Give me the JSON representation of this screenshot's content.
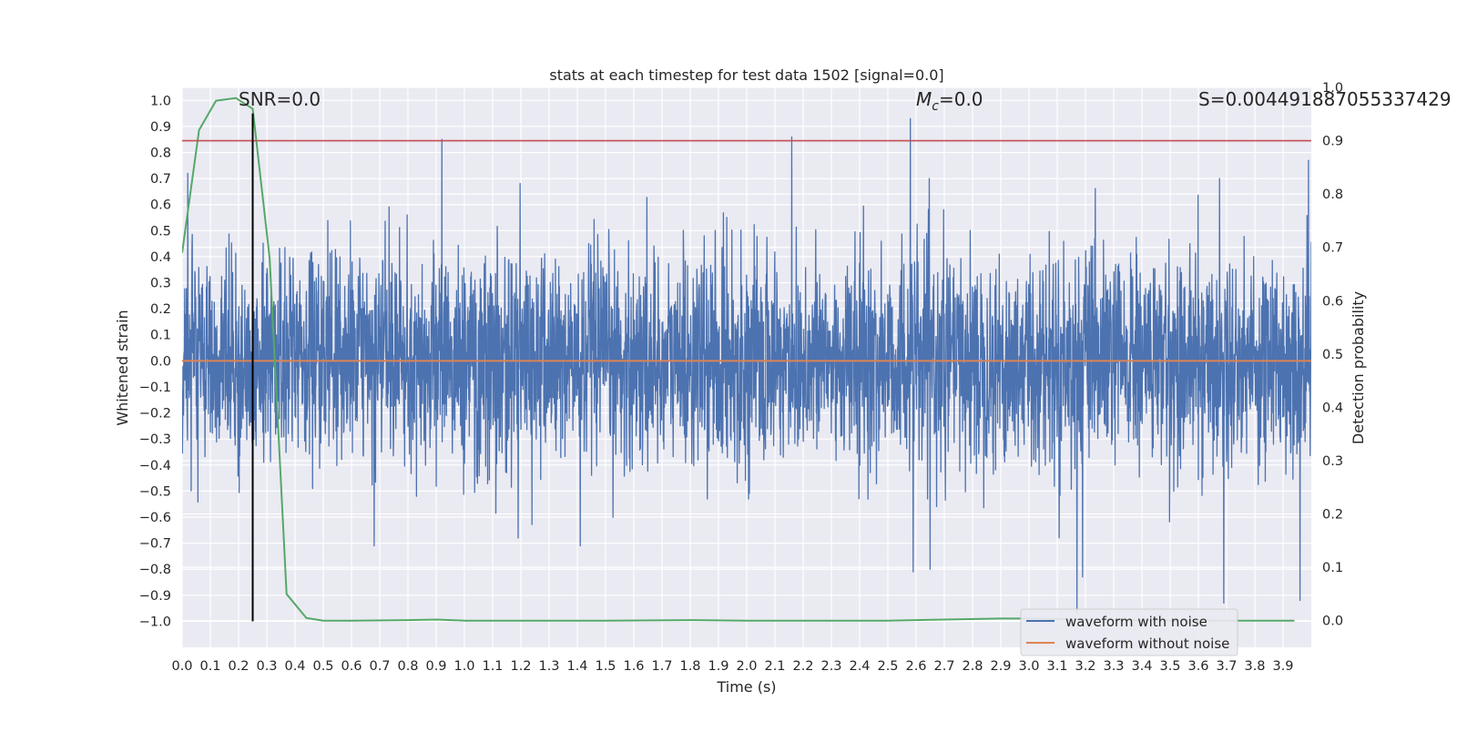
{
  "chart_data": {
    "type": "line",
    "title": "stats at each timestep for test data 1502 [signal=0.0]",
    "xlabel": "Time (s)",
    "ylabel": "Whitened strain",
    "y2label": "Detection probability",
    "xlim": [
      0.0,
      4.0
    ],
    "ylim": [
      -1.1,
      1.05
    ],
    "y2lim": [
      -0.05,
      1.0
    ],
    "xticks": [
      0.0,
      0.1,
      0.2,
      0.3,
      0.4,
      0.5,
      0.6,
      0.7,
      0.8,
      0.9,
      1.0,
      1.1,
      1.2,
      1.3,
      1.4,
      1.5,
      1.6,
      1.7,
      1.8,
      1.9,
      2.0,
      2.1,
      2.2,
      2.3,
      2.4,
      2.5,
      2.6,
      2.7,
      2.8,
      2.9,
      3.0,
      3.1,
      3.2,
      3.3,
      3.4,
      3.5,
      3.6,
      3.7,
      3.8,
      3.9
    ],
    "xtick_labels": [
      "0.0",
      "0.1",
      "0.2",
      "0.3",
      "0.4",
      "0.5",
      "0.6",
      "0.7",
      "0.8",
      "0.9",
      "1.0",
      "1.1",
      "1.2",
      "1.3",
      "1.4",
      "1.5",
      "1.6",
      "1.7",
      "1.8",
      "1.9",
      "2.0",
      "2.1",
      "2.2",
      "2.3",
      "2.4",
      "2.5",
      "2.6",
      "2.7",
      "2.8",
      "2.9",
      "3.0",
      "3.1",
      "3.2",
      "3.3",
      "3.4",
      "3.5",
      "3.6",
      "3.7",
      "3.8",
      "3.9"
    ],
    "yticks": [
      1.0,
      0.9,
      0.8,
      0.7,
      0.6,
      0.5,
      0.4,
      0.3,
      0.2,
      0.1,
      0.0,
      -0.1,
      -0.2,
      -0.3,
      -0.4,
      -0.5,
      -0.6,
      -0.7,
      -0.8,
      -0.9,
      -1.0
    ],
    "ytick_labels": [
      "1.0",
      "0.9",
      "0.8",
      "0.7",
      "0.6",
      "0.5",
      "0.4",
      "0.3",
      "0.2",
      "0.1",
      "0.0",
      "−0.1",
      "−0.2",
      "−0.3",
      "−0.4",
      "−0.5",
      "−0.6",
      "−0.7",
      "−0.8",
      "−0.9",
      "−1.0"
    ],
    "y2ticks": [
      1.0,
      0.9,
      0.8,
      0.7,
      0.6,
      0.5,
      0.4,
      0.3,
      0.2,
      0.1,
      0.0
    ],
    "y2tick_labels": [
      "1.0",
      "0.9",
      "0.8",
      "0.7",
      "0.6",
      "0.5",
      "0.4",
      "0.3",
      "0.2",
      "0.1",
      "0.0"
    ],
    "series": [
      {
        "name": "waveform with noise",
        "axis": "left",
        "color": "#4c72b0",
        "generator": "noise",
        "n_points": 4000,
        "spikes": [
          {
            "t": 0.02,
            "v": 0.72
          },
          {
            "t": 0.92,
            "v": 0.85
          },
          {
            "t": 1.19,
            "v": -0.68
          },
          {
            "t": 2.16,
            "v": 0.86
          },
          {
            "t": 2.58,
            "v": 0.93
          },
          {
            "t": 2.59,
            "v": -0.81
          },
          {
            "t": 2.65,
            "v": -0.8
          },
          {
            "t": 3.17,
            "v": -0.97
          },
          {
            "t": 3.19,
            "v": -0.83
          },
          {
            "t": 3.69,
            "v": -0.93
          },
          {
            "t": 3.96,
            "v": -0.92
          },
          {
            "t": 3.99,
            "v": 0.77
          },
          {
            "t": 1.41,
            "v": -0.71
          },
          {
            "t": 0.68,
            "v": -0.71
          }
        ]
      },
      {
        "name": "waveform without noise",
        "axis": "left",
        "color": "#dd8452",
        "x": [
          0.0,
          4.0
        ],
        "y": [
          0.0,
          0.0
        ]
      },
      {
        "name": "detection probability",
        "axis": "right",
        "color": "#55a868",
        "x": [
          0.0,
          0.06,
          0.12,
          0.19,
          0.25,
          0.31,
          0.37,
          0.44,
          0.5,
          0.6,
          0.8,
          0.9,
          1.0,
          1.5,
          1.8,
          2.0,
          2.5,
          2.7,
          2.9,
          3.0,
          3.2,
          3.5,
          3.94
        ],
        "y": [
          0.69,
          0.92,
          0.975,
          0.98,
          0.96,
          0.68,
          0.05,
          0.005,
          0.0,
          0.0,
          0.001,
          0.002,
          0.0,
          0.0,
          0.001,
          0.0,
          0.0,
          0.002,
          0.004,
          0.004,
          0.002,
          0.0,
          0.0
        ]
      }
    ],
    "hlines": [
      {
        "name": "threshold",
        "axis": "right",
        "value": 0.9,
        "color": "#c44e52"
      }
    ],
    "vlines": [
      {
        "name": "marker",
        "x": 0.25,
        "y_from": -1.0,
        "y_to": 0.95,
        "color": "#000000"
      }
    ],
    "annotations": [
      {
        "key": "snr",
        "text": "SNR=0.0",
        "x": 0.2,
        "y": 0.98
      },
      {
        "key": "mc",
        "text": "M_c=0.0",
        "x": 2.6,
        "y": 0.98
      },
      {
        "key": "s",
        "text": "S=0.004491887055337429",
        "x": 3.6,
        "y": 0.98
      }
    ],
    "legend": {
      "position": "bottom-right",
      "entries": [
        "waveform with noise",
        "waveform without noise"
      ]
    },
    "grid": true,
    "colors": {
      "plot_bg": "#eaeaf2",
      "grid": "#ffffff",
      "noise": "#4c72b0",
      "clean": "#dd8452",
      "prob": "#55a868",
      "threshold": "#c44e52"
    }
  }
}
